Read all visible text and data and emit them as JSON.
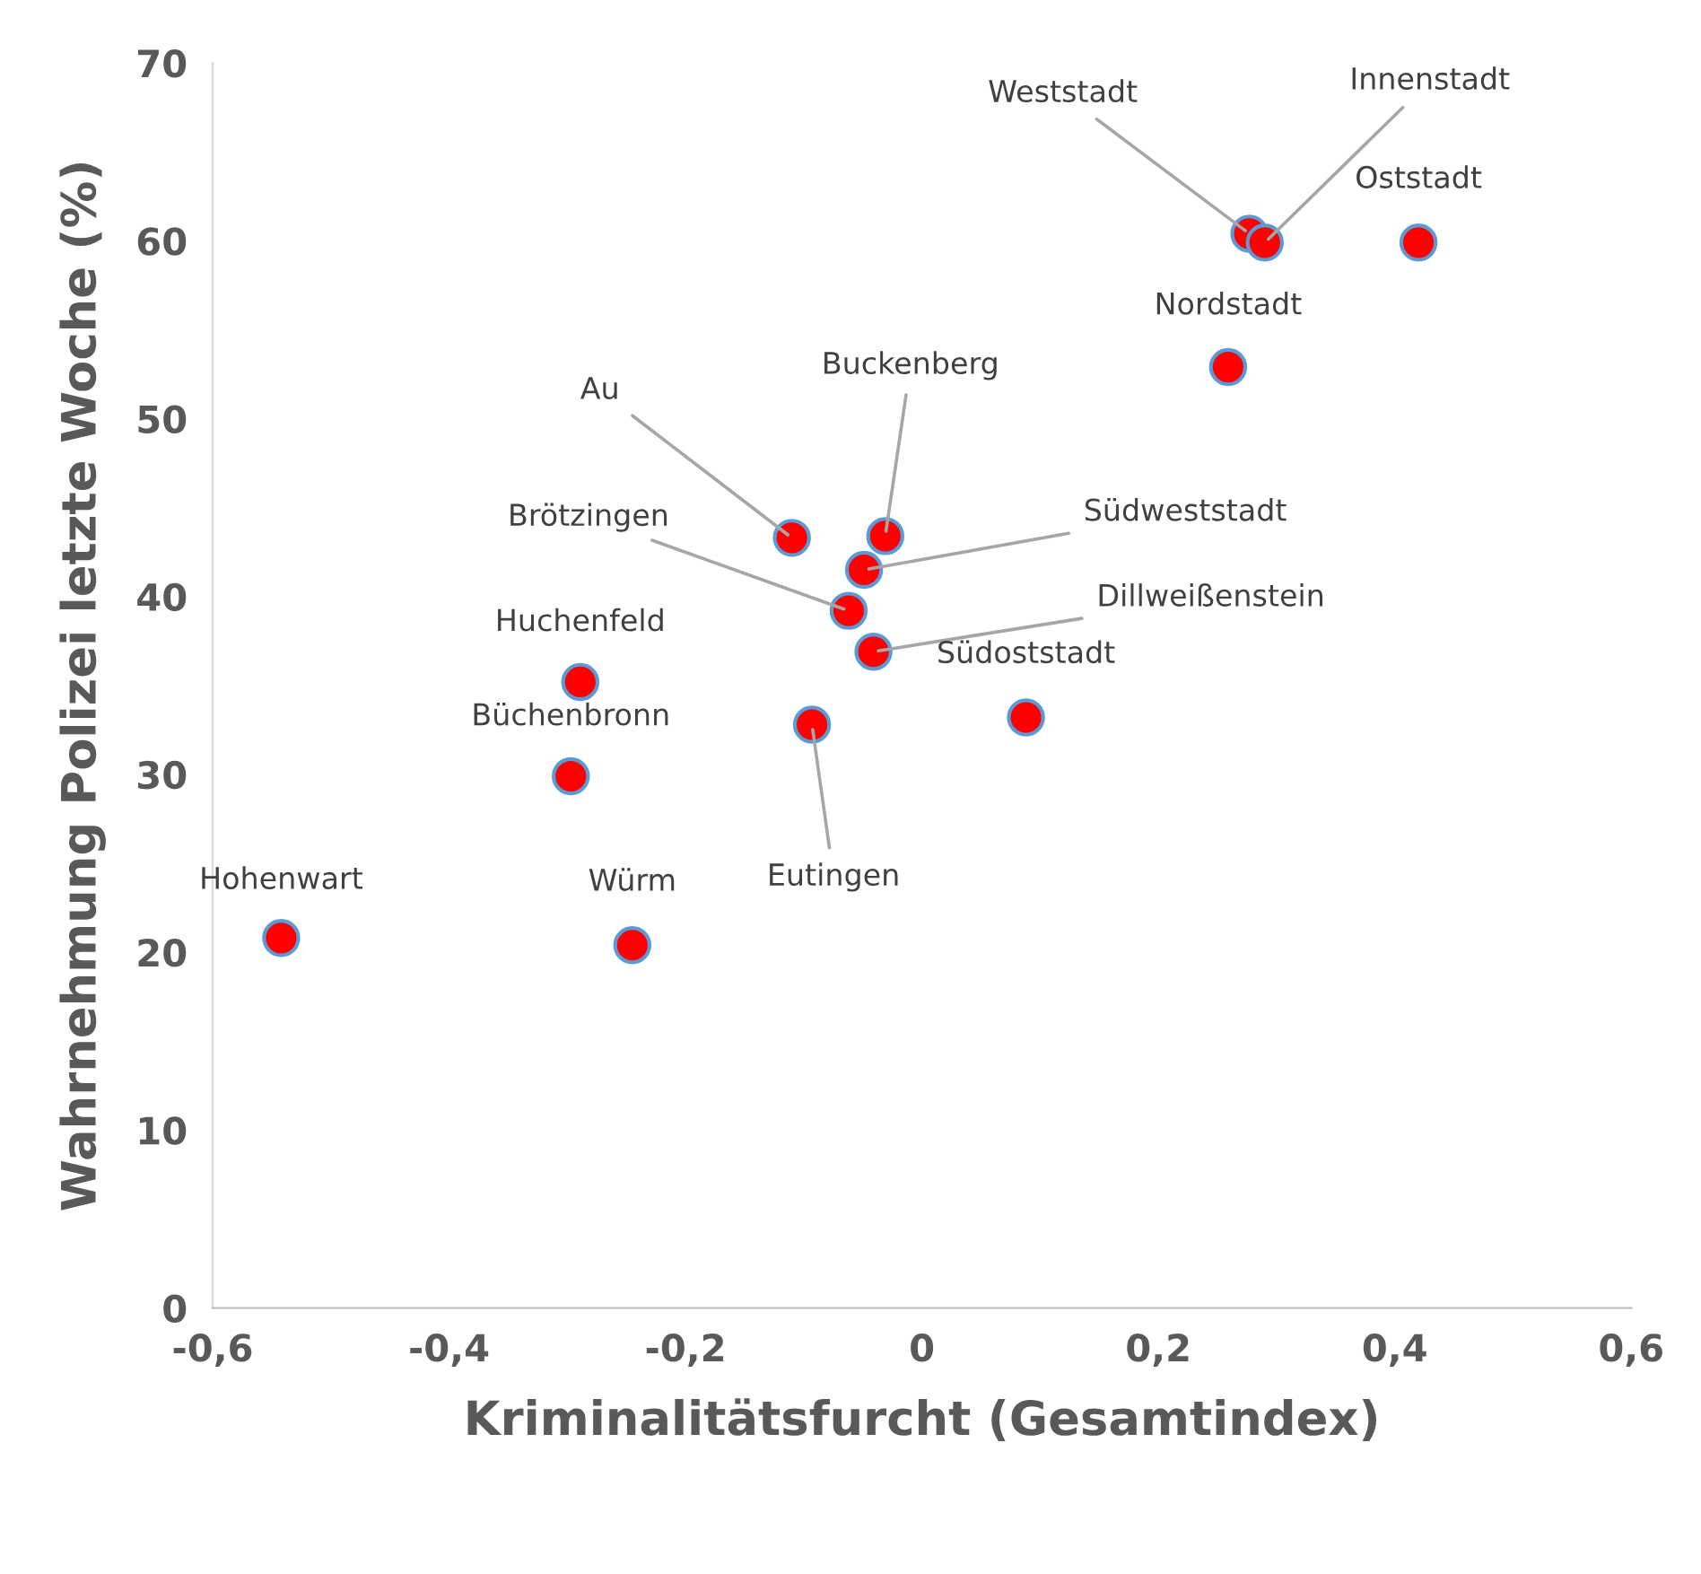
{
  "chart_data": {
    "type": "scatter",
    "xlabel": "Kriminalitätsfurcht (Gesamtindex)",
    "ylabel": "Wahrnehmung Polizei letzte Woche (%)",
    "xlim": [
      -0.6,
      0.6
    ],
    "ylim": [
      0,
      70
    ],
    "xticks": [
      {
        "value": -0.6,
        "label": "-0,6"
      },
      {
        "value": -0.4,
        "label": "-0,4"
      },
      {
        "value": -0.2,
        "label": "-0,2"
      },
      0,
      {
        "value": 0.2,
        "label": "0,2"
      },
      {
        "value": 0.4,
        "label": "0,4"
      },
      {
        "value": 0.6,
        "label": "0,6"
      }
    ],
    "yticks": [
      0,
      10,
      20,
      30,
      40,
      50,
      60,
      70
    ],
    "grid": false,
    "marker": "circle",
    "series": [
      {
        "color": "#ff0000",
        "x": [
          -0.542,
          -0.245,
          -0.297,
          -0.289,
          -0.11,
          -0.031,
          -0.049,
          -0.062,
          -0.041,
          -0.093,
          0.088,
          0.259,
          0.277,
          0.29,
          0.42
        ],
        "values": [
          20.8,
          20.4,
          29.9,
          35.2,
          43.3,
          43.4,
          41.5,
          39.2,
          36.9,
          32.8,
          33.2,
          52.9,
          60.4,
          59.9,
          59.9
        ]
      }
    ],
    "annotations": [
      {
        "text": "Hohenwart",
        "x": -0.542,
        "y": 20.8
      },
      {
        "text": "Würm",
        "x": -0.245,
        "y": 20.4
      },
      {
        "text": "Büchenbronn",
        "x": -0.297,
        "y": 29.9
      },
      {
        "text": "Huchenfeld",
        "x": -0.289,
        "y": 35.2
      },
      {
        "text": "Au",
        "x": -0.11,
        "y": 43.3
      },
      {
        "text": "Buckenberg",
        "x": -0.031,
        "y": 43.4
      },
      {
        "text": "Südweststadt",
        "x": -0.049,
        "y": 41.5
      },
      {
        "text": "Brötzingen",
        "x": -0.062,
        "y": 39.2
      },
      {
        "text": "Dillweißenstein",
        "x": -0.041,
        "y": 36.9
      },
      {
        "text": "Eutingen",
        "x": -0.093,
        "y": 32.8
      },
      {
        "text": "Südoststadt",
        "x": 0.088,
        "y": 33.2
      },
      {
        "text": "Nordstadt",
        "x": 0.259,
        "y": 52.9
      },
      {
        "text": "Weststadt",
        "x": 0.277,
        "y": 60.4
      },
      {
        "text": "Innenstadt",
        "x": 0.29,
        "y": 59.9
      },
      {
        "text": "Oststadt",
        "x": 0.42,
        "y": 59.9
      }
    ]
  }
}
